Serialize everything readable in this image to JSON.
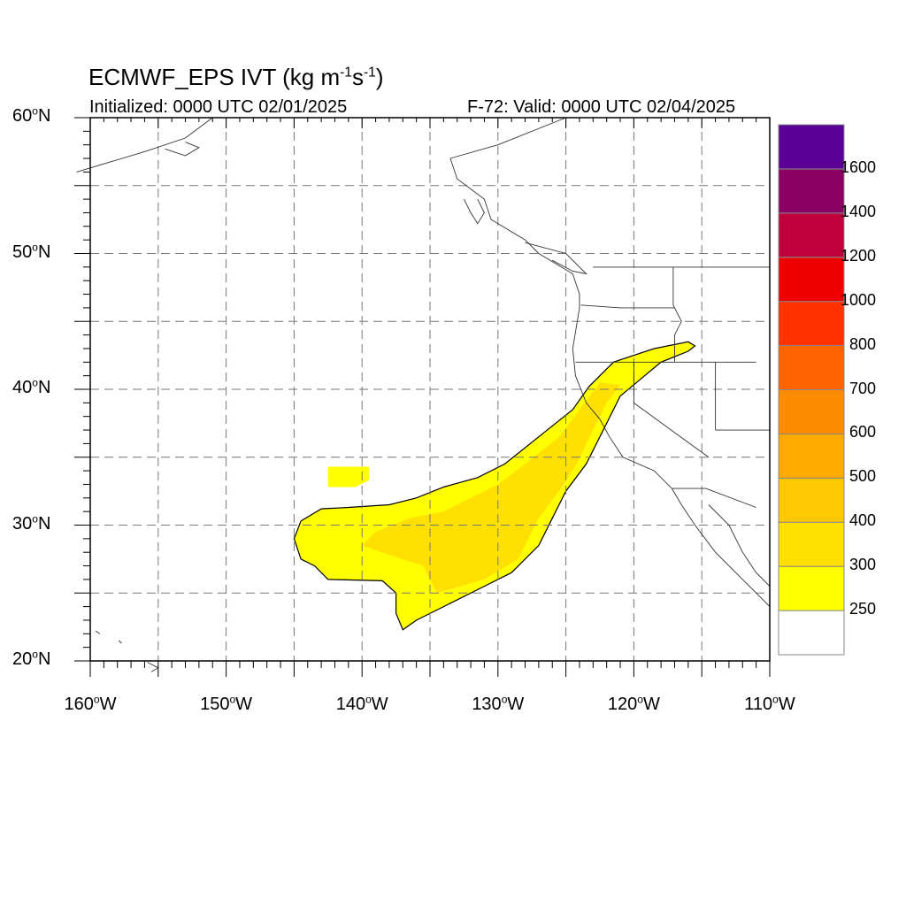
{
  "title": {
    "prefix": "ECMWF_EPS IVT (kg m",
    "exp1": "-1",
    "mid": "s",
    "exp2": "-1",
    "suffix": ")"
  },
  "subtitle_left": "Initialized: 0000 UTC 02/01/2025",
  "subtitle_right": "F-72: Valid: 0000 UTC 02/04/2025",
  "axes": {
    "lat_labels": [
      {
        "deg": "60",
        "suffix": "N",
        "lat": 60
      },
      {
        "deg": "50",
        "suffix": "N",
        "lat": 50
      },
      {
        "deg": "40",
        "suffix": "N",
        "lat": 40
      },
      {
        "deg": "30",
        "suffix": "N",
        "lat": 30
      },
      {
        "deg": "20",
        "suffix": "N",
        "lat": 20
      }
    ],
    "lon_labels": [
      {
        "deg": "160",
        "suffix": "W",
        "lon": -160
      },
      {
        "deg": "150",
        "suffix": "W",
        "lon": -150
      },
      {
        "deg": "140",
        "suffix": "W",
        "lon": -140
      },
      {
        "deg": "130",
        "suffix": "W",
        "lon": -130
      },
      {
        "deg": "120",
        "suffix": "W",
        "lon": -120
      },
      {
        "deg": "110",
        "suffix": "W",
        "lon": -110
      }
    ],
    "lat_range": [
      20,
      60
    ],
    "lon_range": [
      -160,
      -110
    ],
    "grid_interval_deg": 5,
    "grid": true
  },
  "colorbar": {
    "levels": [
      "250",
      "300",
      "400",
      "500",
      "600",
      "700",
      "800",
      "1000",
      "1200",
      "1400",
      "1600"
    ],
    "colors": [
      "#ffffff",
      "#ffff00",
      "#ffe000",
      "#ffc800",
      "#ffaa00",
      "#ff8c00",
      "#ff6400",
      "#ff3200",
      "#ee0000",
      "#c0003c",
      "#8c0064",
      "#5a0096"
    ]
  },
  "ivt_field": {
    "main_plume": [
      [
        -137,
        22.3
      ],
      [
        -136,
        23.0
      ],
      [
        -134,
        24.0
      ],
      [
        -131,
        25.5
      ],
      [
        -129,
        26.5
      ],
      [
        -127,
        28.5
      ],
      [
        -126,
        30.5
      ],
      [
        -125,
        32.5
      ],
      [
        -123.5,
        34.5
      ],
      [
        -122,
        37.5
      ],
      [
        -121,
        39.5
      ],
      [
        -118,
        42.0
      ],
      [
        -116,
        42.8
      ],
      [
        -115.5,
        43.2
      ],
      [
        -116,
        43.5
      ],
      [
        -118.5,
        43.0
      ],
      [
        -120,
        42.5
      ],
      [
        -121.5,
        42.0
      ],
      [
        -123.3,
        40.2
      ],
      [
        -124.5,
        38.5
      ],
      [
        -127,
        36.5
      ],
      [
        -129.5,
        34.5
      ],
      [
        -131.5,
        33.5
      ],
      [
        -134,
        32.8
      ],
      [
        -136,
        32.0
      ],
      [
        -138,
        31.5
      ],
      [
        -141,
        31.3
      ],
      [
        -143,
        31.2
      ],
      [
        -144.5,
        30.3
      ],
      [
        -145,
        29.0
      ],
      [
        -144.5,
        27.5
      ],
      [
        -143.5,
        27.0
      ],
      [
        -142.5,
        26.0
      ],
      [
        -138.5,
        25.9
      ],
      [
        -137.5,
        25.0
      ],
      [
        -137.5,
        23.5
      ]
    ],
    "small_blob": [
      [
        -142.5,
        33.0
      ],
      [
        -142.5,
        34.3
      ],
      [
        -139.5,
        34.3
      ],
      [
        -139.5,
        33.3
      ],
      [
        -140.5,
        32.8
      ],
      [
        -142.5,
        32.8
      ]
    ],
    "inner_plume": [
      [
        -134.5,
        25.0
      ],
      [
        -131,
        26.0
      ],
      [
        -128.5,
        27.5
      ],
      [
        -127,
        30.5
      ],
      [
        -125.5,
        32.5
      ],
      [
        -124.2,
        34.5
      ],
      [
        -123,
        37.0
      ],
      [
        -122,
        39.0
      ],
      [
        -121,
        40.3
      ],
      [
        -122.5,
        40.5
      ],
      [
        -124,
        38.5
      ],
      [
        -125.5,
        36.5
      ],
      [
        -128,
        34.5
      ],
      [
        -130,
        33.0
      ],
      [
        -132,
        32.0
      ],
      [
        -134,
        31.0
      ],
      [
        -136.5,
        30.5
      ],
      [
        -139,
        29.5
      ],
      [
        -140,
        28.5
      ],
      [
        -138,
        27.8
      ],
      [
        -135.5,
        27.0
      ]
    ],
    "colors": {
      "outer": "#ffff00",
      "inner": "#ffe000"
    }
  }
}
